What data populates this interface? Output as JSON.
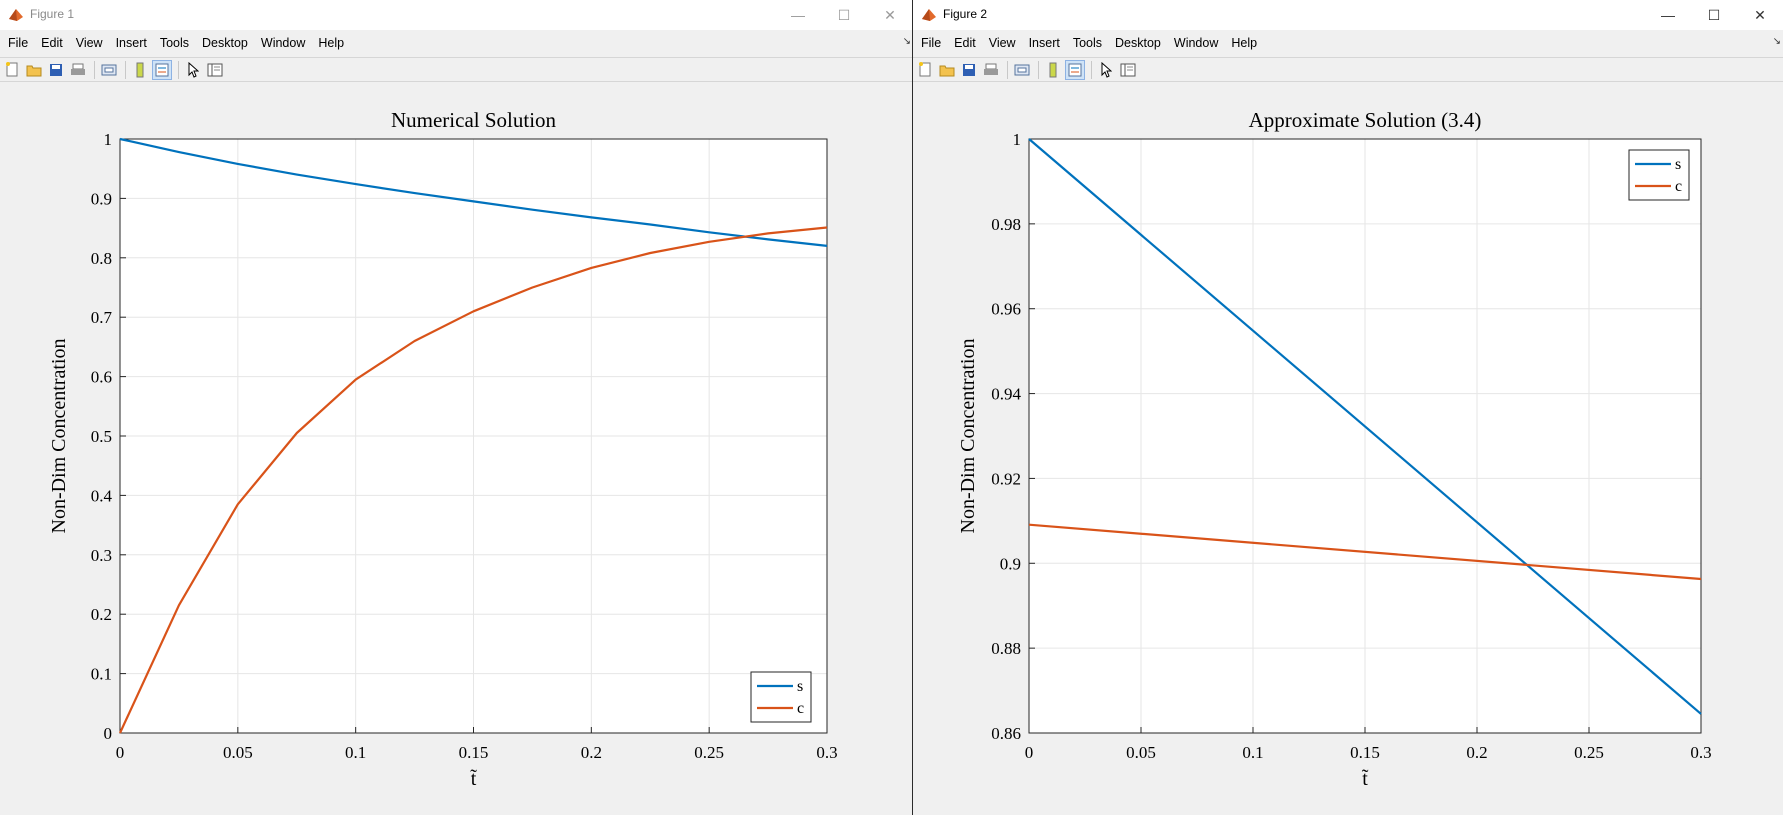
{
  "windows": [
    {
      "title": "Figure 1",
      "menu": [
        "File",
        "Edit",
        "View",
        "Insert",
        "Tools",
        "Desktop",
        "Window",
        "Help"
      ],
      "chart": {
        "title": "Numerical Solution",
        "xlabel": "t̃",
        "ylabel": "Non-Dim Concentration"
      }
    },
    {
      "title": "Figure 2",
      "menu": [
        "File",
        "Edit",
        "View",
        "Insert",
        "Tools",
        "Desktop",
        "Window",
        "Help"
      ],
      "chart": {
        "title": "Approximate Solution (3.4)",
        "xlabel": "t̃",
        "ylabel": "Non-Dim Concentration"
      }
    }
  ],
  "colors": {
    "s": "#0072bd",
    "c": "#d95319",
    "grid": "#e6e6e6"
  },
  "chart_data": [
    {
      "type": "line",
      "title": "Numerical Solution",
      "xlabel": "t̃",
      "ylabel": "Non-Dim Concentration",
      "xlim": [
        0,
        0.3
      ],
      "ylim": [
        0,
        1
      ],
      "xticks": [
        0,
        0.05,
        0.1,
        0.15,
        0.2,
        0.25,
        0.3
      ],
      "xtick_labels": [
        "0",
        "0.05",
        "0.1",
        "0.15",
        "0.2",
        "0.25",
        "0.3"
      ],
      "yticks": [
        0,
        0.1,
        0.2,
        0.3,
        0.4,
        0.5,
        0.6,
        0.7,
        0.8,
        0.9,
        1
      ],
      "ytick_labels": [
        "0",
        "0.1",
        "0.2",
        "0.3",
        "0.4",
        "0.5",
        "0.6",
        "0.7",
        "0.8",
        "0.9",
        "1"
      ],
      "grid": true,
      "legend": "bottom-right",
      "series": [
        {
          "name": "s",
          "x": [
            0,
            0.025,
            0.05,
            0.075,
            0.1,
            0.125,
            0.15,
            0.175,
            0.2,
            0.225,
            0.25,
            0.275,
            0.3
          ],
          "y": [
            1.0,
            0.978,
            0.958,
            0.94,
            0.924,
            0.909,
            0.895,
            0.881,
            0.868,
            0.856,
            0.843,
            0.831,
            0.82
          ]
        },
        {
          "name": "c",
          "x": [
            0,
            0.025,
            0.05,
            0.075,
            0.1,
            0.125,
            0.15,
            0.175,
            0.2,
            0.225,
            0.25,
            0.275,
            0.3
          ],
          "y": [
            0,
            0.215,
            0.385,
            0.505,
            0.595,
            0.66,
            0.71,
            0.75,
            0.783,
            0.808,
            0.827,
            0.841,
            0.851
          ]
        }
      ]
    },
    {
      "type": "line",
      "title": "Approximate Solution (3.4)",
      "xlabel": "t̃",
      "ylabel": "Non-Dim Concentration",
      "xlim": [
        0,
        0.3
      ],
      "ylim": [
        0.86,
        1
      ],
      "xticks": [
        0,
        0.05,
        0.1,
        0.15,
        0.2,
        0.25,
        0.3
      ],
      "xtick_labels": [
        "0",
        "0.05",
        "0.1",
        "0.15",
        "0.2",
        "0.25",
        "0.3"
      ],
      "yticks": [
        0.86,
        0.88,
        0.9,
        0.92,
        0.94,
        0.96,
        0.98,
        1
      ],
      "ytick_labels": [
        "0.86",
        "0.88",
        "0.9",
        "0.92",
        "0.94",
        "0.96",
        "0.98",
        "1"
      ],
      "grid": true,
      "legend": "top-right",
      "series": [
        {
          "name": "s",
          "x": [
            0,
            0.3
          ],
          "y": [
            1.0,
            0.8645
          ]
        },
        {
          "name": "c",
          "x": [
            0,
            0.3
          ],
          "y": [
            0.9091,
            0.8963
          ]
        }
      ]
    }
  ]
}
